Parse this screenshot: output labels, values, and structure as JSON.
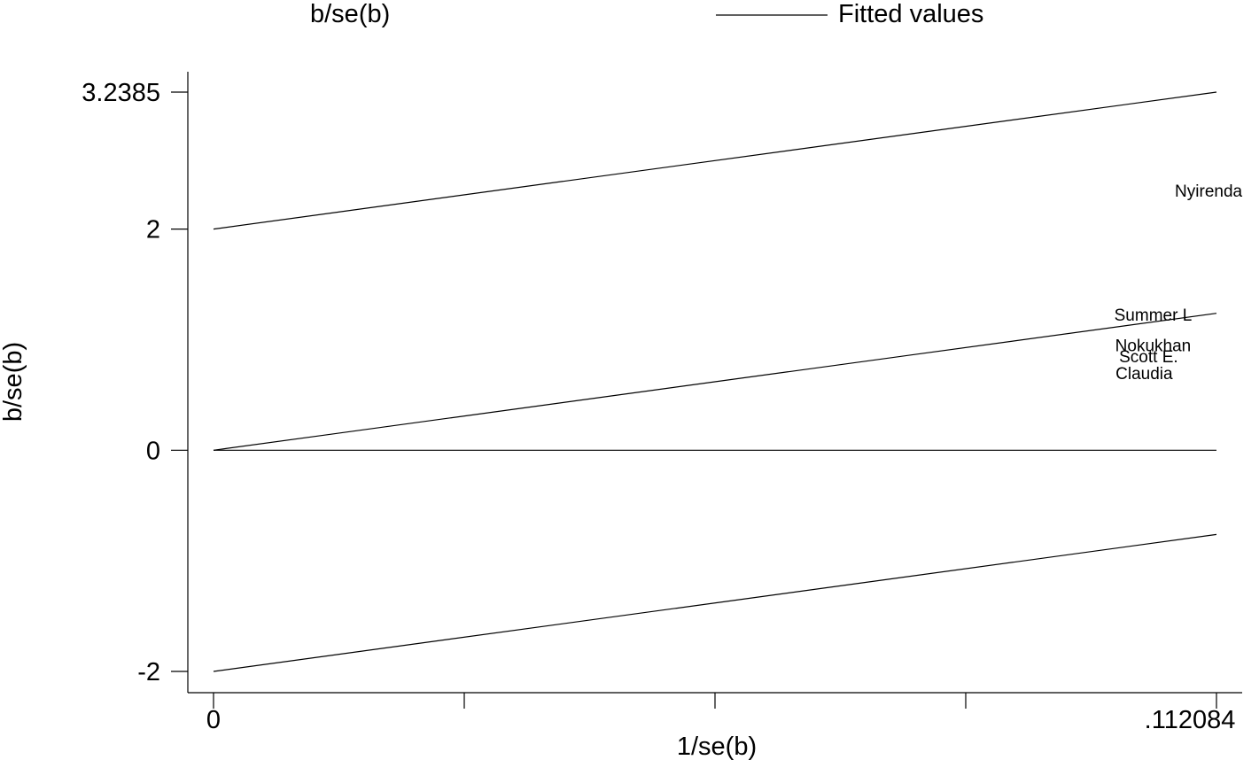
{
  "chart_data": {
    "type": "scatter",
    "title": "",
    "xlabel": "1/se(b)",
    "ylabel": "b/se(b)",
    "xlim": [
      0,
      0.112084
    ],
    "ylim": [
      -2,
      3.2385
    ],
    "x_ticks": [
      0,
      0.028021,
      0.056042,
      0.084063,
      0.112084
    ],
    "x_tick_labels": [
      "0",
      "",
      "",
      "",
      ".112084"
    ],
    "y_ticks": [
      -2,
      0,
      2,
      3.2385
    ],
    "y_tick_labels": [
      "-2",
      "0",
      "2",
      "3.2385"
    ],
    "legend": {
      "placement": "top",
      "entries": [
        {
          "label": "b/se(b)",
          "symbol": "none"
        },
        {
          "label": "Fitted values",
          "symbol": "line"
        }
      ]
    },
    "points": [
      {
        "label": "Nyirenda",
        "x": 0.1112,
        "y": 2.35
      },
      {
        "label": "Summer L",
        "x": 0.105,
        "y": 1.23
      },
      {
        "label": "Nokukhan",
        "x": 0.105,
        "y": 0.95
      },
      {
        "label": "Scott E.",
        "x": 0.1045,
        "y": 0.85
      },
      {
        "label": "Claudia",
        "x": 0.104,
        "y": 0.7
      }
    ],
    "lines": [
      {
        "name": "upper_ci",
        "x": [
          0,
          0.112084
        ],
        "y": [
          2,
          3.2385
        ]
      },
      {
        "name": "fitted",
        "x": [
          0,
          0.112084
        ],
        "y": [
          0,
          1.2385
        ]
      },
      {
        "name": "zero",
        "x": [
          0,
          0.112084
        ],
        "y": [
          0,
          0
        ]
      },
      {
        "name": "lower_ci",
        "x": [
          0,
          0.112084
        ],
        "y": [
          -2,
          -0.7615
        ]
      }
    ],
    "grid": false
  }
}
